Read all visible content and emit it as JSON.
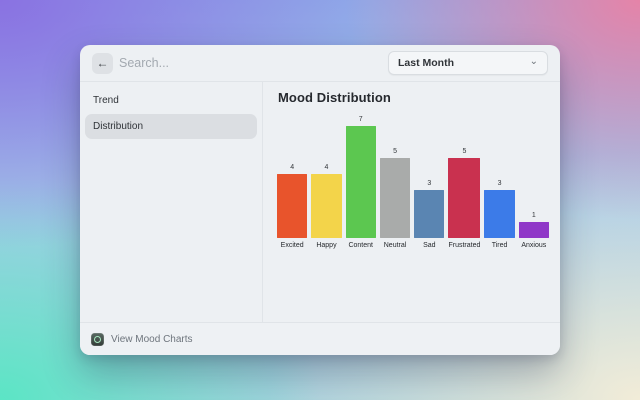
{
  "window": {
    "header": {
      "back_icon": "←",
      "search": {
        "placeholder": "Search...",
        "value": ""
      },
      "period_dropdown": {
        "value": "Last Month",
        "chevron": "⌄"
      }
    },
    "sidebar": {
      "items": [
        {
          "label": "Trend",
          "selected": false
        },
        {
          "label": "Distribution",
          "selected": true
        }
      ]
    },
    "main": {
      "title": "Mood Distribution"
    },
    "footer": {
      "app_icon": "mood-app-icon",
      "label": "View Mood Charts"
    }
  },
  "chart_data": {
    "type": "bar",
    "title": "Mood Distribution",
    "categories": [
      "Excited",
      "Happy",
      "Content",
      "Neutral",
      "Sad",
      "Frustrated",
      "Tired",
      "Anxious"
    ],
    "values": [
      4,
      4,
      7,
      5,
      3,
      5,
      3,
      1
    ],
    "colors": [
      "#e8542c",
      "#f3d44a",
      "#5cc750",
      "#a9abaa",
      "#5a85b2",
      "#c9314f",
      "#3c7be8",
      "#9038c8"
    ],
    "xlabel": "",
    "ylabel": "",
    "ylim": [
      0,
      7
    ],
    "grid": false,
    "legend": false,
    "value_labels": true
  },
  "colors": {
    "window_bg": "#edf0f3",
    "sidebar_selected_bg": "#dbdee2",
    "divider": "#e0e4e8",
    "bg_top_left": "#8a72e2",
    "bg_top_right": "#e584a8",
    "bg_bottom_left": "#5be5c5",
    "bg_bottom_right": "#f2ecd8"
  }
}
